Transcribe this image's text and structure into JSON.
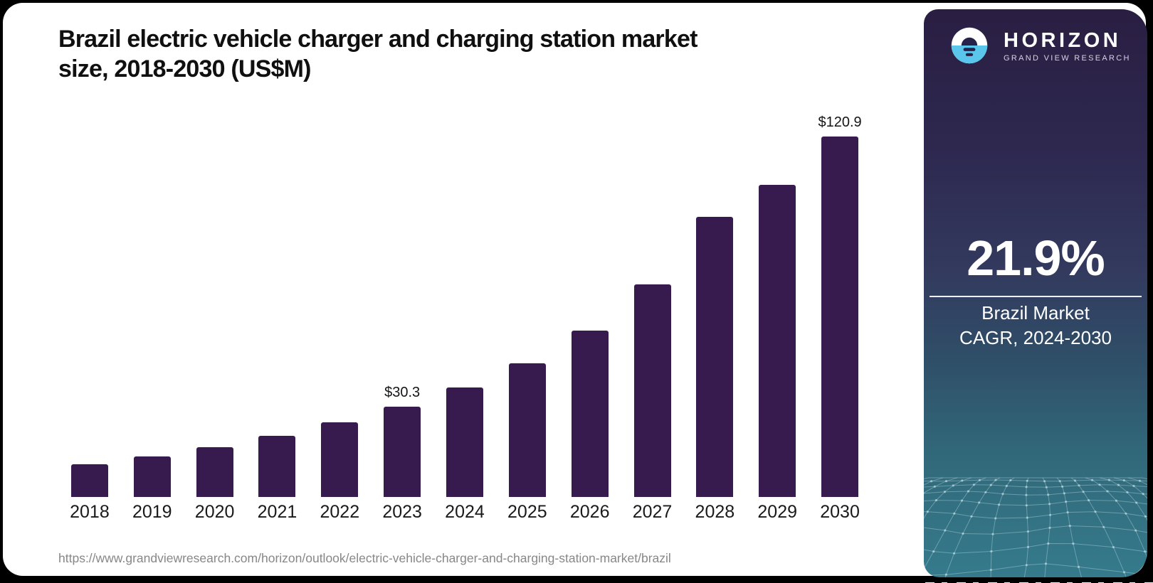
{
  "header": {
    "title_line1": "Brazil electric vehicle charger and charging station market",
    "title_line2": "size, 2018-2030 (US$M)"
  },
  "chart_data": {
    "type": "bar",
    "title": "Brazil electric vehicle charger and charging station market size, 2018-2030 (US$M)",
    "unit": "US$M",
    "categories": [
      "2018",
      "2019",
      "2020",
      "2021",
      "2022",
      "2023",
      "2024",
      "2025",
      "2026",
      "2027",
      "2028",
      "2029",
      "2030"
    ],
    "values": [
      11.0,
      13.6,
      16.7,
      20.6,
      25.1,
      30.3,
      36.8,
      44.9,
      55.9,
      71.2,
      93.9,
      104.7,
      120.9
    ],
    "data_labels": {
      "2023": "$30.3",
      "2030": "$120.9"
    },
    "xlabel": "",
    "ylabel": "",
    "ylim": [
      0,
      130
    ],
    "grid": false,
    "legend_position": "none",
    "bar_color": "#371A4E",
    "axis_color": "#222222"
  },
  "source_url": "https://www.grandviewresearch.com/horizon/outlook/electric-vehicle-charger-and-charging-station-market/brazil",
  "sidebar": {
    "logo": {
      "brand": "HORIZON",
      "sub_brand": "GRAND VIEW RESEARCH",
      "icon": "horizon-sun-icon"
    },
    "stat_value": "21.9%",
    "stat_caption_line1": "Brazil Market",
    "stat_caption_line2": "CAGR, 2024-2030",
    "colors": {
      "gradient_top": "#2A1E42",
      "gradient_bottom": "#357B8C",
      "logo_blue": "#5BC6EC",
      "logo_navy": "#27224A",
      "text": "#FFFFFF"
    }
  }
}
